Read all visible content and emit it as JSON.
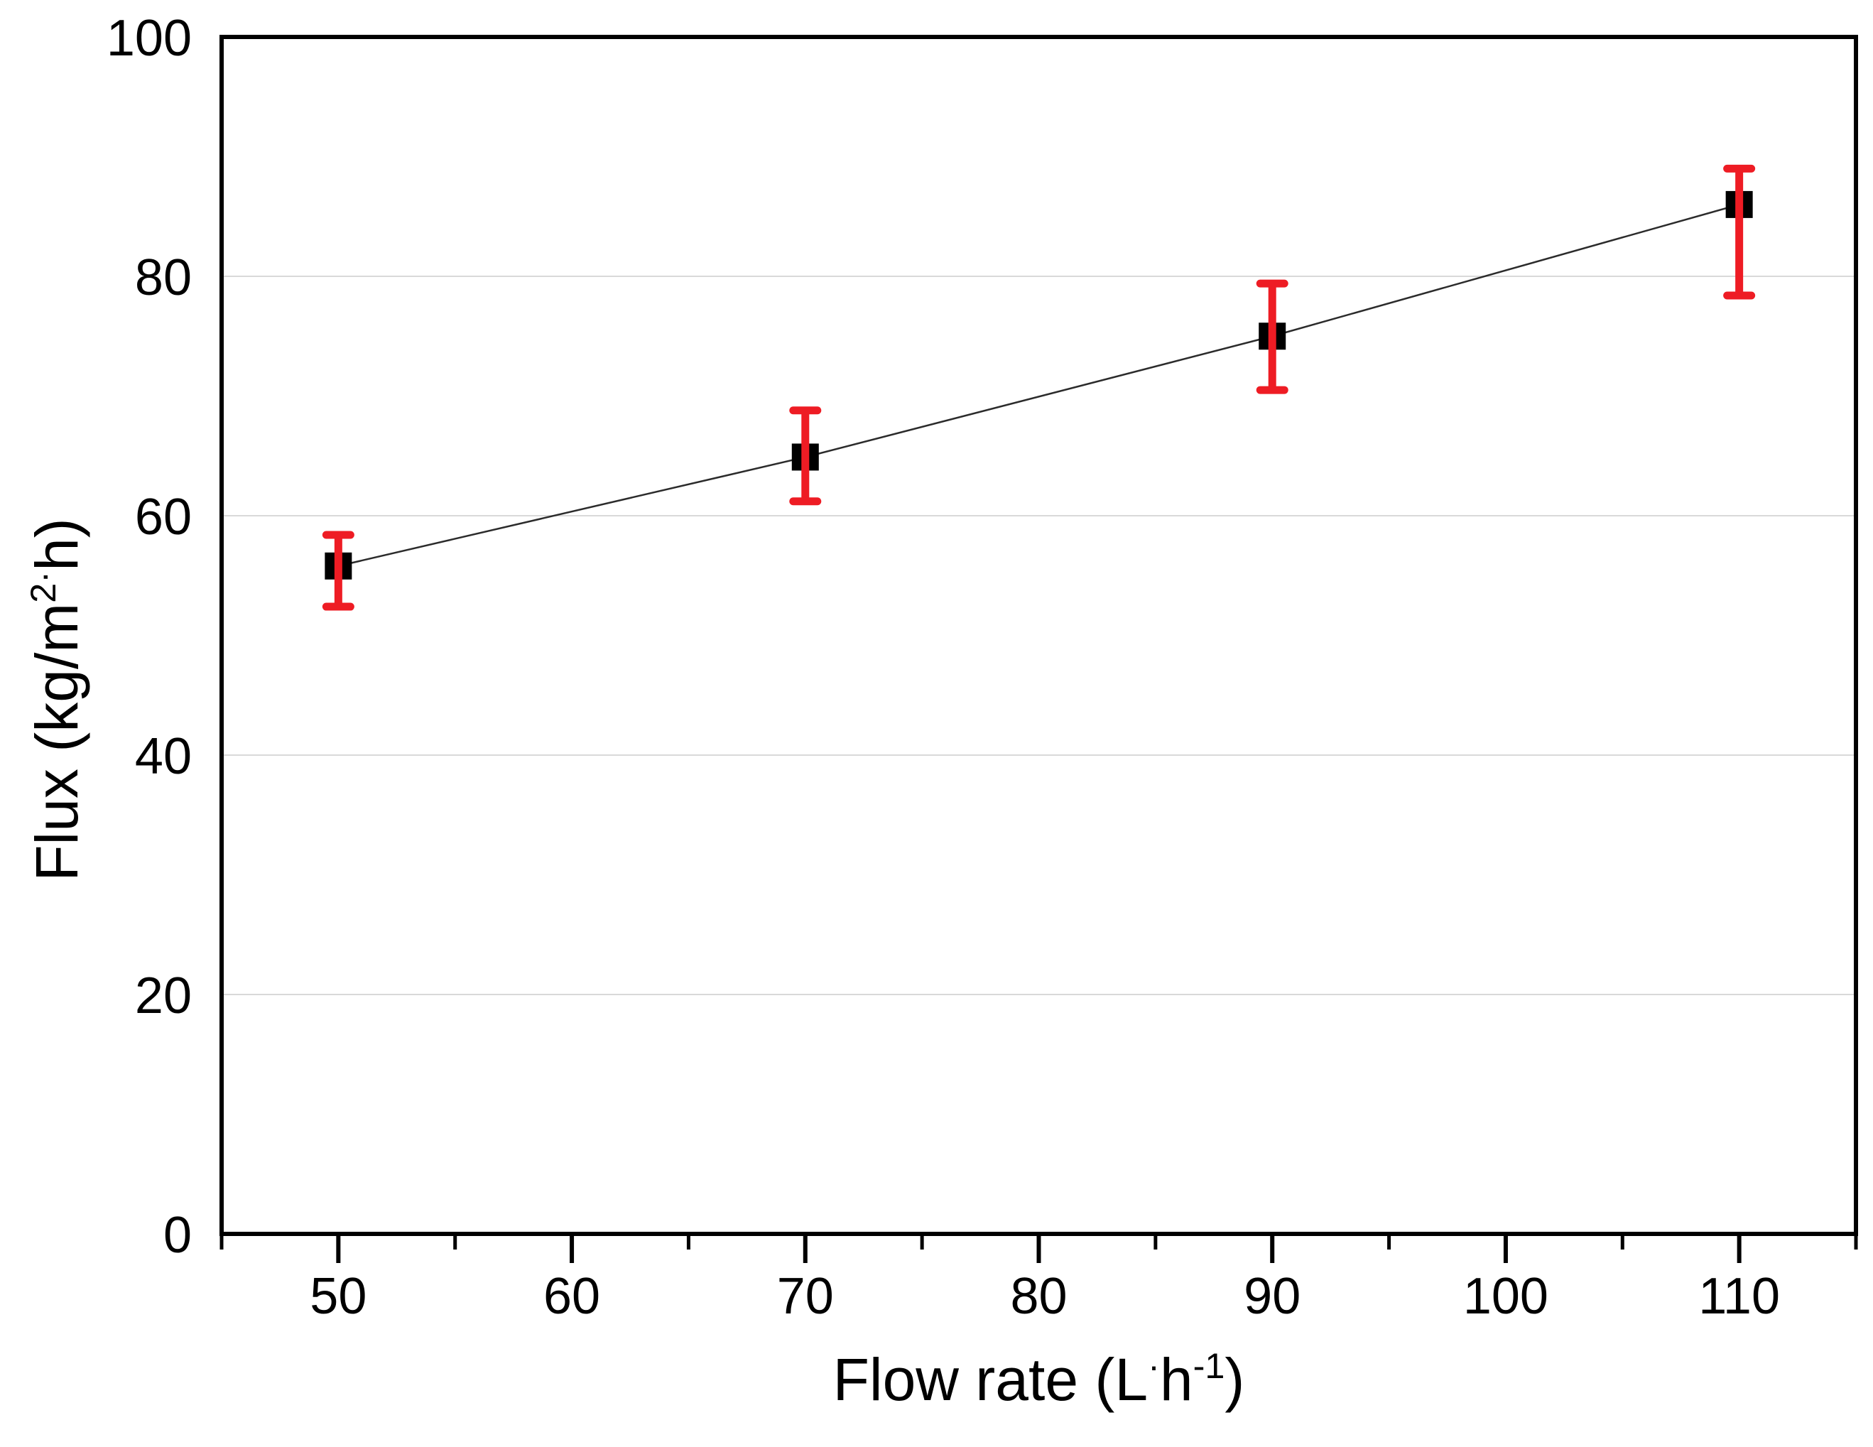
{
  "figure": {
    "background_color": "#ffffff",
    "axis_color": "#000000",
    "gridline_color": "#d9d9d9"
  },
  "chart_data": {
    "type": "scatter",
    "subtype": "line+symbol+yerror",
    "title": "",
    "xlabel": "Flow rate (L·h⁻¹)",
    "ylabel": "Flux (kg/m²·h)",
    "xlabel_parts": [
      {
        "t": "Flow rate (L"
      },
      {
        "t": "·",
        "sup": true
      },
      {
        "t": "h"
      },
      {
        "t": "-1",
        "sup": true
      },
      {
        "t": ")"
      }
    ],
    "ylabel_parts": [
      {
        "t": "Flux (kg/m"
      },
      {
        "t": "2",
        "sup": true
      },
      {
        "t": "·",
        "sup": true
      },
      {
        "t": "h)"
      }
    ],
    "xlim": [
      45,
      115
    ],
    "ylim": [
      0,
      100
    ],
    "x_major_ticks": [
      50,
      60,
      70,
      80,
      90,
      100,
      110
    ],
    "x_minor_tick_step": 5,
    "y_major_ticks": [
      0,
      20,
      40,
      60,
      80,
      100
    ],
    "y_gridlines": [
      20,
      40,
      60,
      80
    ],
    "grid": "horizontal-light",
    "legend": "none",
    "series": [
      {
        "name": "flux-vs-flow-rate",
        "marker": "filled-square",
        "marker_color": "#000000",
        "line_color": "#2b2b2b",
        "error_bar_color": "#ee1c24",
        "points": [
          {
            "x": 50,
            "y": 55.8,
            "err_up": 2.6,
            "err_down": 3.4
          },
          {
            "x": 70,
            "y": 64.9,
            "err_up": 3.9,
            "err_down": 3.7
          },
          {
            "x": 90,
            "y": 75.0,
            "err_up": 4.4,
            "err_down": 4.5
          },
          {
            "x": 110,
            "y": 86.0,
            "err_up": 3.0,
            "err_down": 7.6
          }
        ]
      }
    ]
  }
}
